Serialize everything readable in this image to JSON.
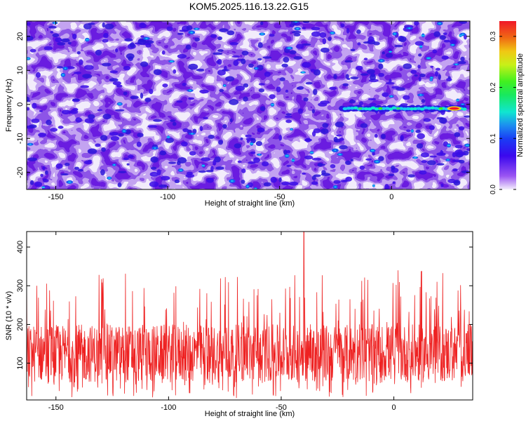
{
  "title": "KOM5.2025.116.13.22.G15",
  "chart_data": [
    {
      "type": "heatmap",
      "xlabel": "Height of straight line (km)",
      "ylabel": "Frequency (Hz)",
      "xlim": [
        -163,
        35
      ],
      "ylim": [
        -25,
        24.5
      ],
      "xticks": [
        -150,
        -100,
        -50,
        0
      ],
      "yticks": [
        -20,
        -10,
        0,
        10,
        20
      ],
      "colorbar": {
        "label": "Normalized spectral amplitude",
        "range": [
          0.0,
          0.33
        ],
        "ticks": [
          0.0,
          0.1,
          0.2,
          0.3
        ],
        "tick_labels": [
          "0.0",
          "0.1",
          "0.2",
          "0.3"
        ]
      },
      "features": [
        {
          "x_range": [
            -22,
            33
          ],
          "frequency_hz": -1.2,
          "peak_amplitude": 0.33,
          "peak_x": 28
        }
      ]
    },
    {
      "type": "line",
      "xlabel": "Height of straight line (km)",
      "ylabel": "SNR (10 * v/v)",
      "xlim": [
        -163,
        35
      ],
      "ylim": [
        5,
        440
      ],
      "xticks": [
        -150,
        -100,
        -50,
        0
      ],
      "yticks": [
        100,
        200,
        300,
        400
      ],
      "color": "#ee2222",
      "series": [
        {
          "x_range": [
            -163,
            35
          ],
          "typical_range": [
            50,
            200
          ],
          "mean": 120,
          "max": 440,
          "max_at": -40
        }
      ]
    }
  ]
}
